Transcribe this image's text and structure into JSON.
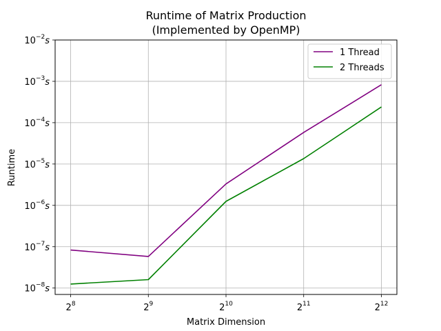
{
  "chart_data": {
    "type": "line",
    "title_lines": [
      "Runtime of Matrix Production",
      "(Implemented by OpenMP)"
    ],
    "xlabel": "Matrix Dimension",
    "ylabel": "Runtime",
    "x_scale": "log2",
    "y_scale": "log10",
    "x": [
      256,
      512,
      1024,
      2048,
      4096
    ],
    "x_tick_labels": [
      {
        "base": "2",
        "exp": "8"
      },
      {
        "base": "2",
        "exp": "9"
      },
      {
        "base": "2",
        "exp": "10"
      },
      {
        "base": "2",
        "exp": "11"
      },
      {
        "base": "2",
        "exp": "12"
      }
    ],
    "y_ticks": [
      1e-08,
      1e-07,
      1e-06,
      1e-05,
      0.0001,
      0.001,
      0.01
    ],
    "y_tick_labels": [
      {
        "base": "10",
        "exp": "−8",
        "unit": "s"
      },
      {
        "base": "10",
        "exp": "−7",
        "unit": "s"
      },
      {
        "base": "10",
        "exp": "−6",
        "unit": "s"
      },
      {
        "base": "10",
        "exp": "−5",
        "unit": "s"
      },
      {
        "base": "10",
        "exp": "−4",
        "unit": "s"
      },
      {
        "base": "10",
        "exp": "−3",
        "unit": "s"
      },
      {
        "base": "10",
        "exp": "−2",
        "unit": "s"
      }
    ],
    "ylim": [
      7e-09,
      0.01
    ],
    "grid": true,
    "legend_position": "top-right",
    "series": [
      {
        "name": "1 Thread",
        "color": "#800080",
        "values": [
          8.3e-08,
          5.8e-08,
          3.3e-06,
          5.8e-05,
          0.00083
        ]
      },
      {
        "name": "2 Threads",
        "color": "#008000",
        "values": [
          1.25e-08,
          1.6e-08,
          1.25e-06,
          1.35e-05,
          0.00024
        ]
      }
    ]
  }
}
